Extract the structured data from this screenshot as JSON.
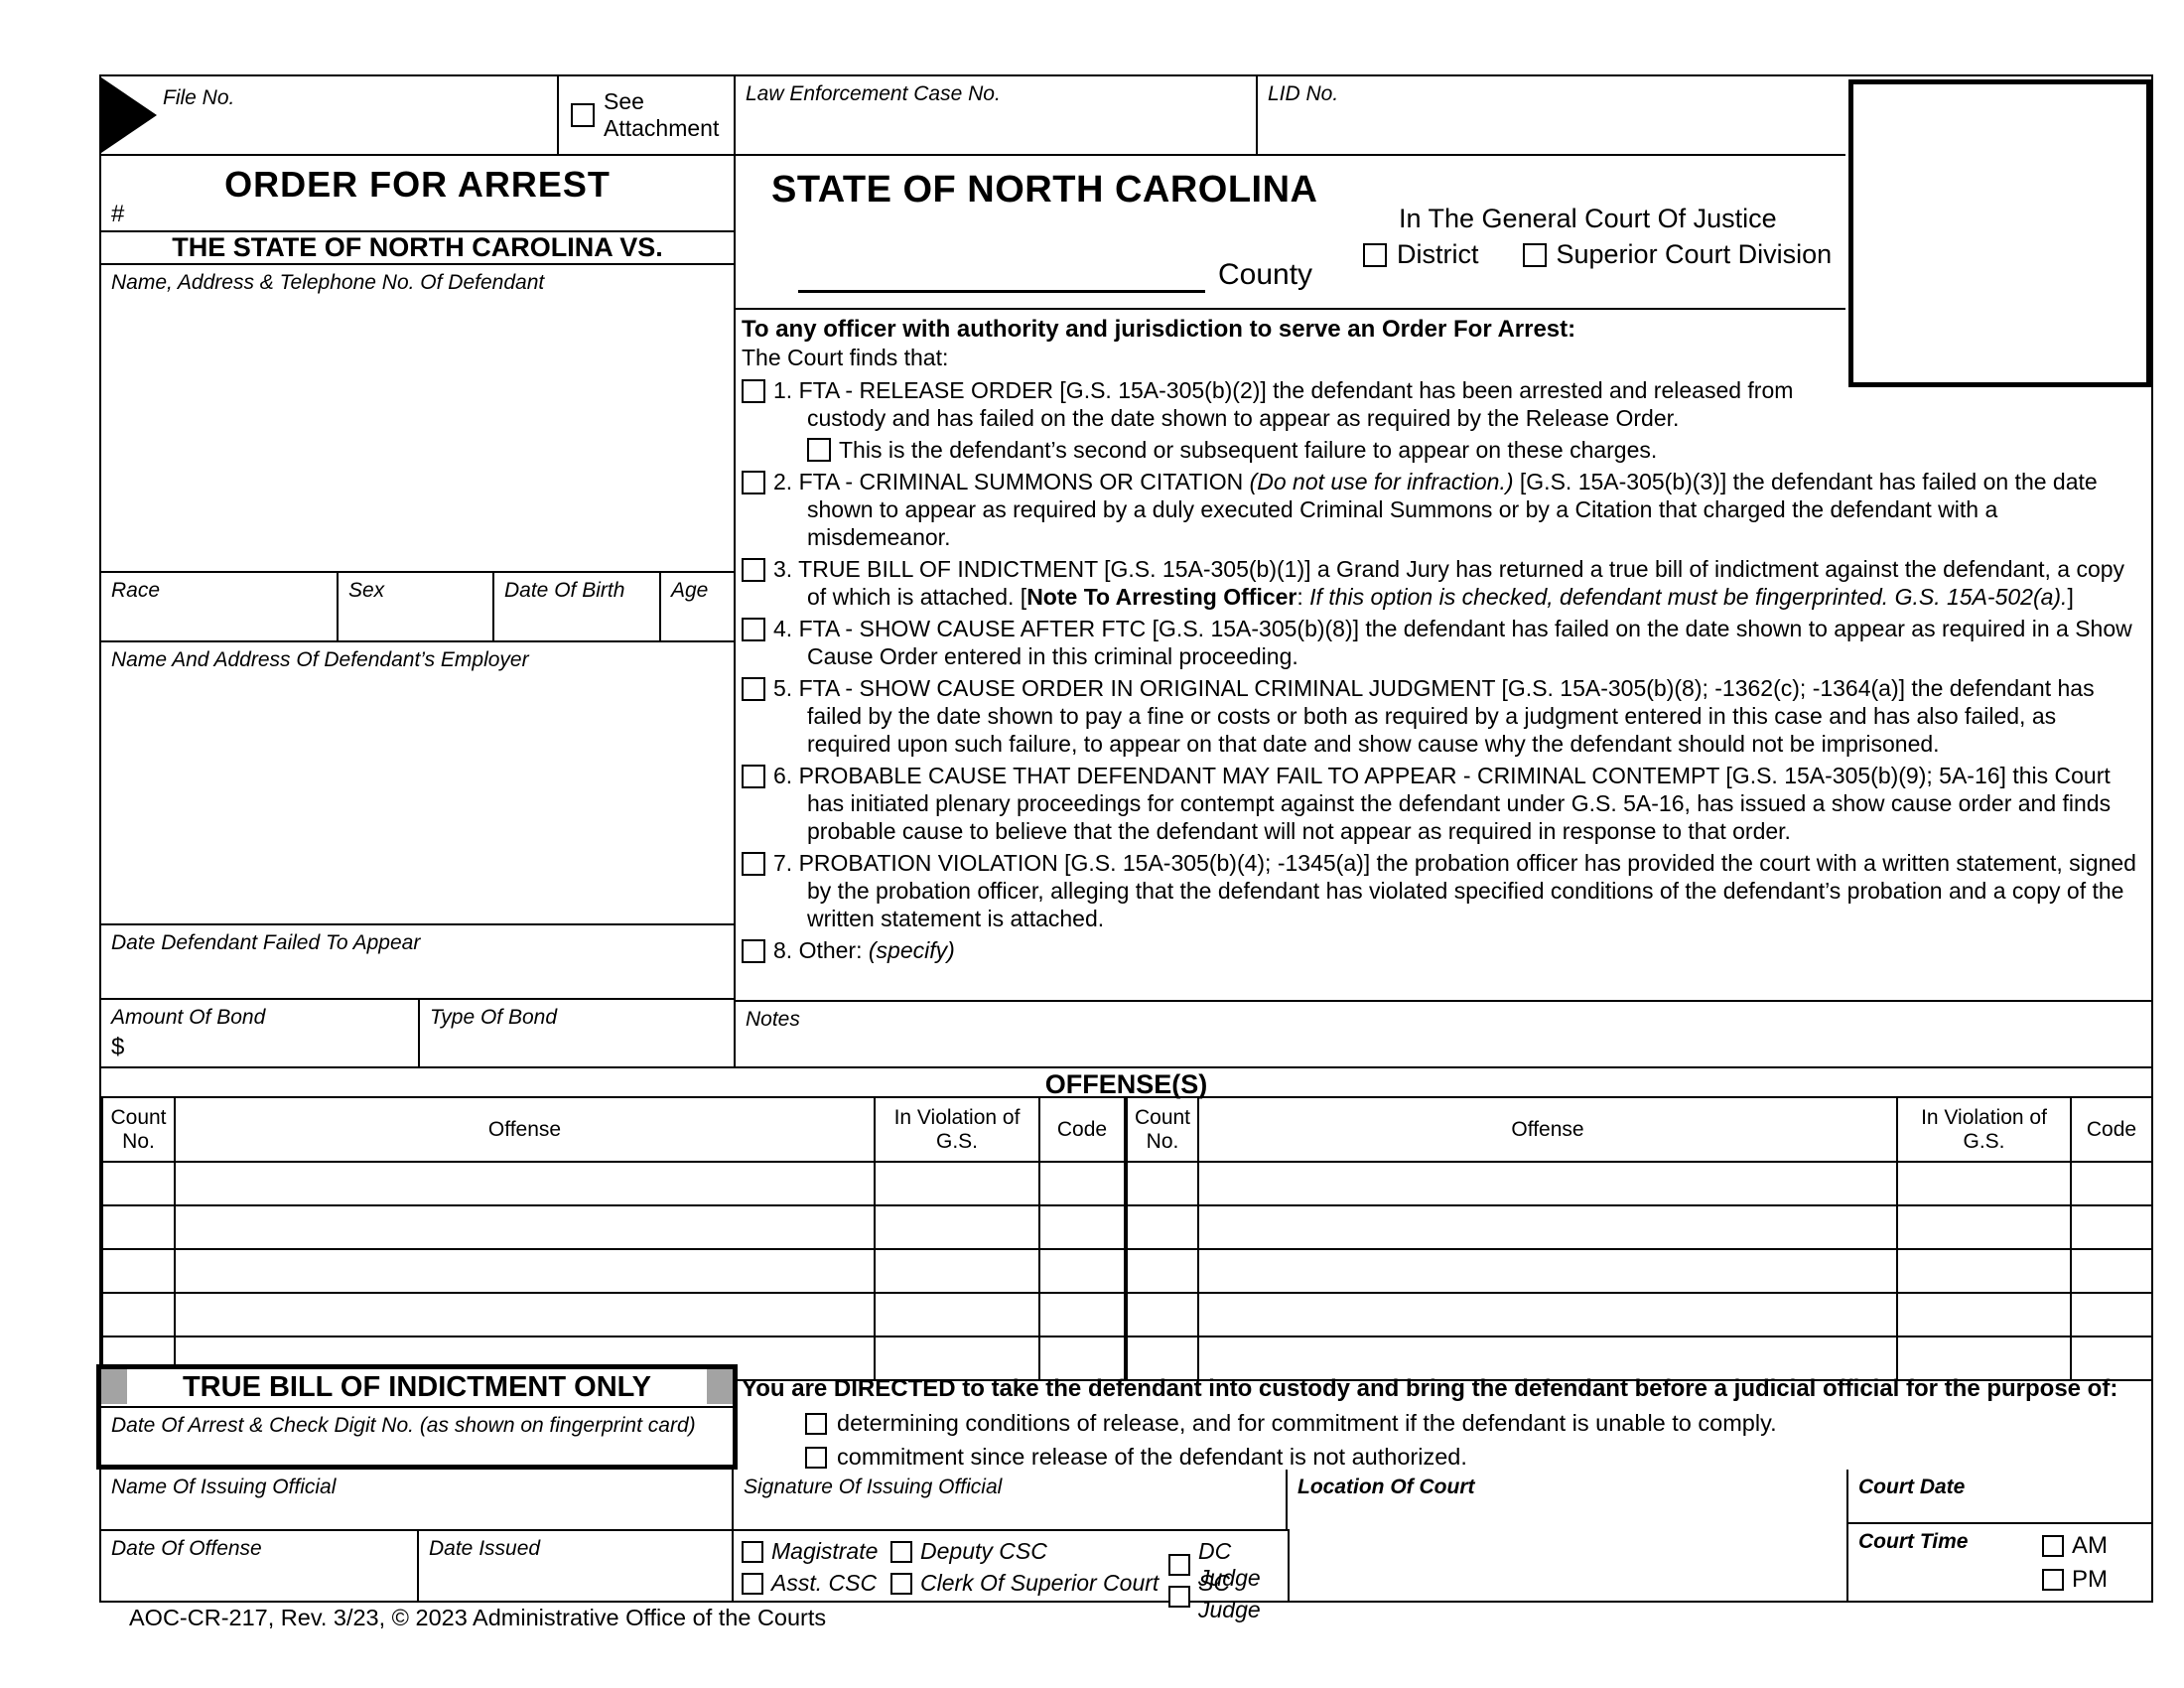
{
  "header": {
    "file_no_label": "File No.",
    "see_attachment": "See Attachment",
    "law_case_label": "Law Enforcement Case No.",
    "lid_label": "LID No."
  },
  "left": {
    "title": "ORDER FOR ARREST",
    "hash": "#",
    "caption": "THE STATE OF NORTH CAROLINA VS.",
    "defendant_label": "Name, Address & Telephone No. Of Defendant",
    "race": "Race",
    "sex": "Sex",
    "dob": "Date Of Birth",
    "age": "Age",
    "employer_label": "Name And Address Of Defendant’s Employer",
    "fta_date_label": "Date Defendant Failed To Appear",
    "amount_label": "Amount Of Bond",
    "dollar": "$",
    "bond_type_label": "Type Of Bond"
  },
  "court": {
    "state": "STATE OF NORTH CAROLINA",
    "county": "County",
    "justice": "In The General Court Of Justice",
    "district": "District",
    "superior": "Superior Court Division"
  },
  "findings": {
    "heading": "To any officer with authority and jurisdiction to serve an Order For Arrest:",
    "intro": "The Court finds that:",
    "items": [
      {
        "rich": [
          {
            "t": "1. FTA - RELEASE ORDER [G.S. 15A-305(b)(2)] the defendant has been arrested and released from custody and has failed on the date shown to appear as required by the Release Order."
          }
        ],
        "sub": [
          {
            "t": "This is the defendant’s second or subsequent failure to appear on these charges."
          }
        ]
      },
      {
        "rich": [
          {
            "t": "2. FTA - CRIMINAL SUMMONS OR CITATION "
          },
          {
            "t": "(Do not use for infraction.)",
            "i": true
          },
          {
            "t": " [G.S. 15A-305(b)(3)] the defendant has failed on the date shown to appear as required by a duly executed Criminal Summons or by a Citation that charged the defendant with a misdemeanor."
          }
        ]
      },
      {
        "rich": [
          {
            "t": "3. TRUE BILL OF INDICTMENT [G.S. 15A-305(b)(1)] a Grand Jury has returned a true bill of indictment against the defendant, a copy of which is attached. ["
          },
          {
            "t": "Note To Arresting Officer",
            "b": true
          },
          {
            "t": ": "
          },
          {
            "t": "If this option is checked, defendant must be fingerprinted. G.S. 15A-502(a).",
            "i": true
          },
          {
            "t": "]"
          }
        ]
      },
      {
        "rich": [
          {
            "t": "4. FTA - SHOW CAUSE AFTER FTC [G.S. 15A-305(b)(8)] the defendant has failed on the date shown to appear as required in a Show Cause Order entered in this criminal proceeding."
          }
        ]
      },
      {
        "rich": [
          {
            "t": "5. FTA - SHOW CAUSE ORDER IN ORIGINAL CRIMINAL JUDGMENT [G.S. 15A-305(b)(8); -1362(c); -1364(a)] the defendant has failed by the date shown to pay a fine or costs or both as required by a judgment entered in this case and has also failed, as required upon such failure, to appear on that date and show cause why the defendant should not be imprisoned."
          }
        ]
      },
      {
        "rich": [
          {
            "t": "6. PROBABLE CAUSE THAT DEFENDANT MAY FAIL TO APPEAR - CRIMINAL CONTEMPT [G.S. 15A-305(b)(9); 5A-16] this Court has initiated plenary proceedings for contempt against the defendant under G.S. 5A-16, has issued a show cause order and finds probable cause to believe that the defendant will not appear as required in response to that order."
          }
        ]
      },
      {
        "rich": [
          {
            "t": "7. PROBATION VIOLATION [G.S. 15A-305(b)(4); -1345(a)] the probation officer has provided the court with a written statement, signed by the probation officer, alleging that the defendant has violated specified conditions of the defendant’s probation and a copy of the written statement is attached."
          }
        ]
      },
      {
        "rich": [
          {
            "t": "8. Other: "
          },
          {
            "t": "(specify)",
            "i": true
          }
        ]
      }
    ]
  },
  "notes_label": "Notes",
  "offenses": {
    "section_title": "OFFENSE(S)",
    "headers": [
      "Count No.",
      "Offense",
      "In Violation of G.S.",
      "Code"
    ],
    "row_count": 5
  },
  "true_bill": {
    "title": "TRUE BILL OF INDICTMENT ONLY",
    "arrest_label": "Date Of Arrest & Check Digit No. (as shown on fingerprint card)"
  },
  "directed": {
    "heading": "You are DIRECTED to take the defendant into custody and bring the defendant before a judicial official for the purpose of:",
    "option1": "determining conditions of release, and for commitment if the defendant is unable to comply.",
    "option2": "commitment since release of the defendant is not authorized."
  },
  "officials": {
    "name_label": "Name Of Issuing Official",
    "signature_label": "Signature Of Issuing Official",
    "location_label": "Location Of Court",
    "court_date_label": "Court Date",
    "date_of_offense_label": "Date Of Offense",
    "date_issued_label": "Date Issued",
    "court_time_label": "Court Time",
    "am": "AM",
    "pm": "PM",
    "roles": [
      "Magistrate",
      "Deputy CSC",
      "DC Judge",
      "Asst. CSC",
      "Clerk Of Superior Court",
      "SC Judge"
    ]
  },
  "footer": "AOC-CR-217, Rev. 3/23, © 2023 Administrative Office of the Courts",
  "colors": {
    "ink": "#000000",
    "corner_gray": "#a3a3a3"
  }
}
